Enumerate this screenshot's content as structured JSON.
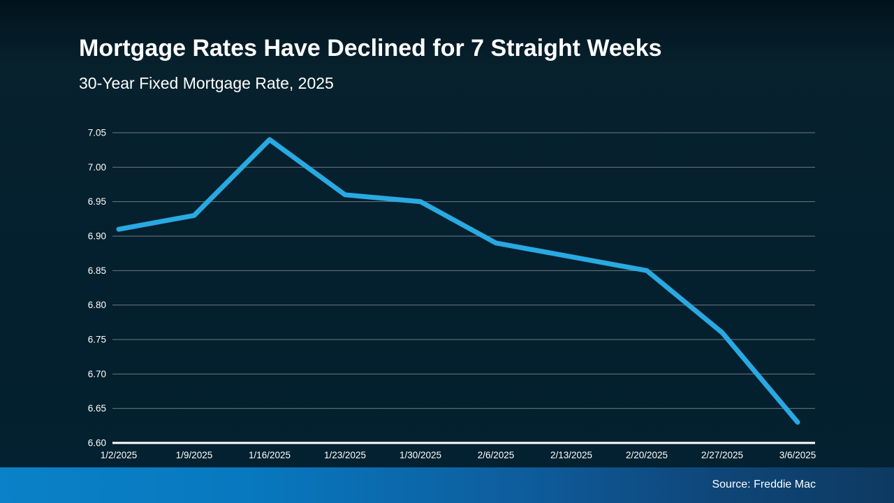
{
  "slide": {
    "title": "Mortgage Rates Have Declined for 7 Straight Weeks",
    "subtitle": "30-Year Fixed Mortgage Rate, 2025",
    "source": "Source: Freddie Mac"
  },
  "colors": {
    "line": "#29a9e2",
    "gridline": "#6e7a81",
    "axis_line": "#ffffff",
    "tick_text": "#ffffff",
    "background": "#04202e",
    "footer_left": "#0a81c8",
    "footer_right": "#0d3a61"
  },
  "chart_data": {
    "type": "line",
    "title": "30-Year Fixed Mortgage Rate, 2025",
    "categories": [
      "1/2/2025",
      "1/9/2025",
      "1/16/2025",
      "1/23/2025",
      "1/30/2025",
      "2/6/2025",
      "2/13/2025",
      "2/20/2025",
      "2/27/2025",
      "3/6/2025"
    ],
    "series": [
      {
        "name": "30-Year Fixed Mortgage Rate",
        "values": [
          6.91,
          6.93,
          7.04,
          6.96,
          6.95,
          6.89,
          6.87,
          6.85,
          6.76,
          6.63
        ]
      }
    ],
    "xlabel": "",
    "ylabel": "",
    "ylim": [
      6.6,
      7.05
    ],
    "ytick_step": 0.05,
    "yticks": [
      "7.05",
      "7.00",
      "6.95",
      "6.90",
      "6.85",
      "6.80",
      "6.75",
      "6.70",
      "6.65",
      "6.60"
    ],
    "grid": true,
    "legend": false
  }
}
